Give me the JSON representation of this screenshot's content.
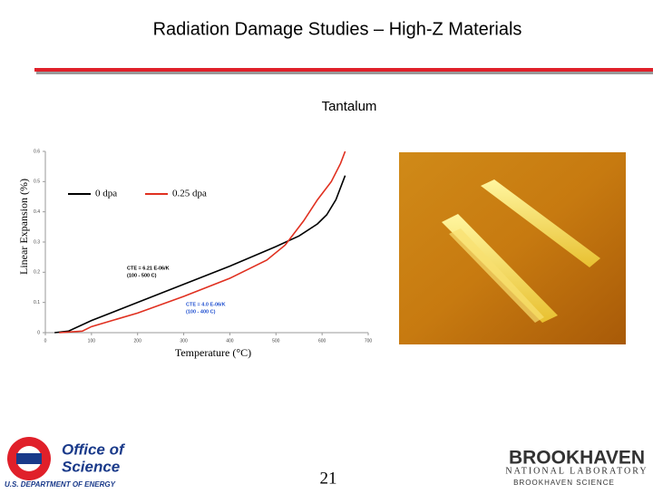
{
  "slide": {
    "title": "Radiation Damage Studies – High-Z Materials",
    "subtitle": "Tantalum",
    "page_number": "21",
    "logo_left": {
      "line1": "Office of",
      "line2": "Science",
      "line3": "U.S. DEPARTMENT OF ENERGY"
    },
    "logo_right": {
      "line1": "BROOKHAVEN",
      "line2": "NATIONAL LABORATORY",
      "line3": "BROOKHAVEN SCIENCE"
    }
  },
  "chart_data": {
    "type": "line",
    "xlabel": "Temperature (°C)",
    "ylabel": "Linear Expansion (%)",
    "xlim": [
      0,
      700
    ],
    "xticks": [
      0,
      100,
      200,
      300,
      400,
      500,
      600,
      700
    ],
    "ylim": [
      0,
      0.6
    ],
    "yticks": [
      0,
      0.1,
      0.2,
      0.3,
      0.4,
      0.5,
      0.6
    ],
    "legend": "upper left",
    "grid": false,
    "series": [
      {
        "name": "0 dpa",
        "color": "#000000",
        "x": [
          20,
          50,
          100,
          200,
          300,
          400,
          500,
          550,
          590,
          610,
          630,
          650
        ],
        "values": [
          0,
          0.005,
          0.04,
          0.1,
          0.16,
          0.22,
          0.285,
          0.32,
          0.36,
          0.39,
          0.44,
          0.52
        ]
      },
      {
        "name": "0.25 dpa",
        "color": "#e03020",
        "x": [
          30,
          80,
          100,
          200,
          300,
          400,
          480,
          520,
          560,
          590,
          620,
          640,
          650
        ],
        "values": [
          0,
          0.005,
          0.02,
          0.065,
          0.12,
          0.18,
          0.24,
          0.29,
          0.37,
          0.44,
          0.5,
          0.56,
          0.6
        ]
      }
    ],
    "annotations": [
      {
        "text": "CTE = 6.21 E-06/K",
        "color": "#000000"
      },
      {
        "text": "(100 - 500 C)",
        "color": "#000000"
      },
      {
        "text": "CTE = 4.0 E-06/K",
        "color": "#2050d0"
      },
      {
        "text": "(100 - 400 C)",
        "color": "#2050d0"
      }
    ]
  }
}
